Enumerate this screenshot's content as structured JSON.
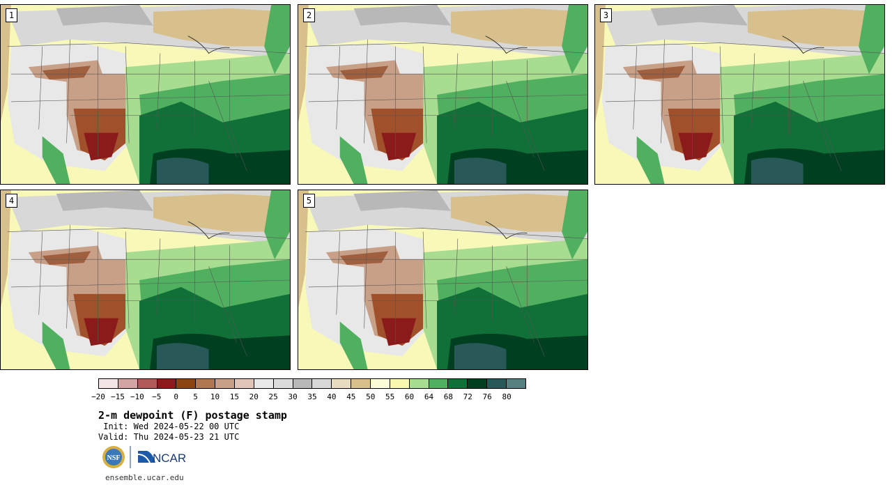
{
  "panels": [
    {
      "label": "1"
    },
    {
      "label": "2"
    },
    {
      "label": "3"
    },
    {
      "label": "4"
    },
    {
      "label": "5"
    }
  ],
  "colorbar": {
    "colors": [
      "#f3e5e5",
      "#d4a3a3",
      "#b05a5a",
      "#8b1a1a",
      "#8b4513",
      "#b07850",
      "#c8a088",
      "#e0c4b8",
      "#e8e8e8",
      "#dcdcdc",
      "#b8b8b8",
      "#d8d8d8",
      "#e8dcc0",
      "#d8c08c",
      "#fcfcd8",
      "#f8f8b0",
      "#a8dc90",
      "#50b060",
      "#107038",
      "#004020",
      "#285858",
      "#588080"
    ],
    "ticks": [
      "−20",
      "−15",
      "−10",
      "−5",
      "0",
      "5",
      "10",
      "15",
      "20",
      "25",
      "30",
      "35",
      "40",
      "45",
      "50",
      "55",
      "60",
      "64",
      "68",
      "72",
      "76",
      "80"
    ]
  },
  "title": "2-m dewpoint (F) postage stamp",
  "init": " Init: Wed 2024-05-22 00 UTC",
  "valid": "Valid: Thu 2024-05-23 21 UTC",
  "logos": {
    "nsf": "NSF",
    "ncar": "NCAR"
  },
  "url": "ensemble.ucar.edu"
}
